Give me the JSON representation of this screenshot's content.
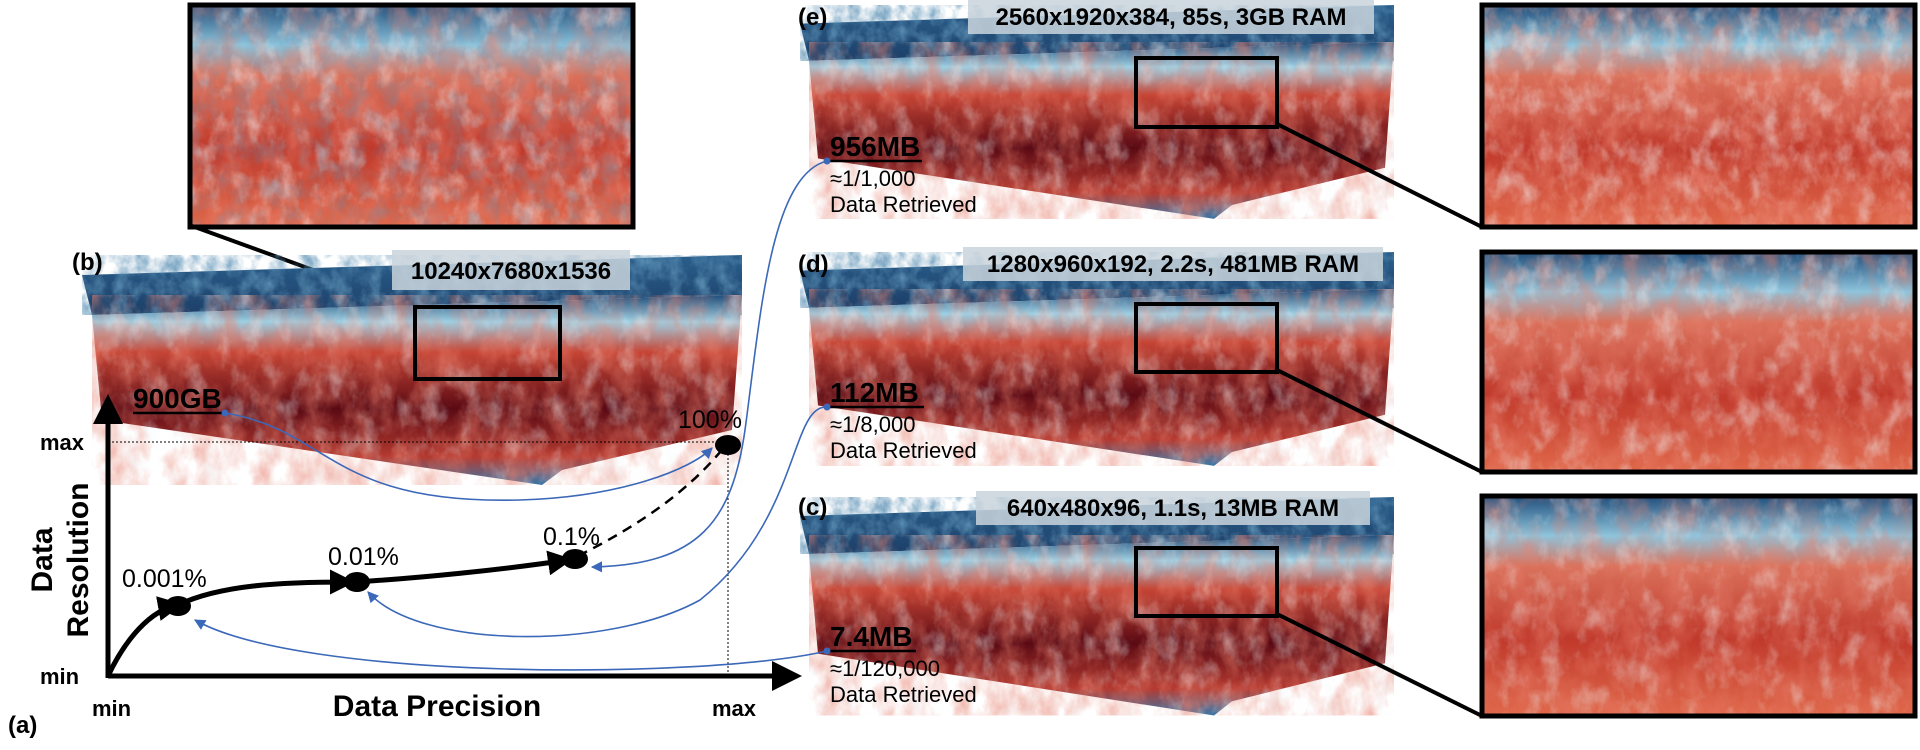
{
  "panels": {
    "a": {
      "tag": "(a)",
      "y_axis_line1": "Data",
      "y_axis_line2": "Resolution",
      "x_axis_label": "Data Precision",
      "x_min": "min",
      "x_max": "max",
      "y_min": "min",
      "y_max": "max",
      "points": [
        "0.001%",
        "0.01%",
        "0.1%",
        "100%"
      ]
    },
    "b": {
      "tag": "(b)",
      "resolution": "10240x7680x1536",
      "size": "900GB"
    },
    "c": {
      "tag": "(c)",
      "caption": "640x480x96, 1.1s, 13MB RAM",
      "size": "7.4MB",
      "fraction": "≈1/120,000",
      "note": "Data Retrieved"
    },
    "d": {
      "tag": "(d)",
      "caption": "1280x960x192, 2.2s, 481MB RAM",
      "size": "112MB",
      "fraction": "≈1/8,000",
      "note": "Data Retrieved"
    },
    "e": {
      "tag": "(e)",
      "caption": "2560x1920x384, 85s, 3GB RAM",
      "size": "956MB",
      "fraction": "≈1/1,000",
      "note": "Data Retrieved"
    }
  },
  "colors": {
    "deep_red": "#5a0a14",
    "red": "#c0392b",
    "orange_red": "#e0684a",
    "light": "#e8f1f6",
    "light_blue": "#8ec4dc",
    "navy": "#1f4d7a",
    "connector_blue": "#3b68b8",
    "caption_bg": "#c9d3dc"
  }
}
